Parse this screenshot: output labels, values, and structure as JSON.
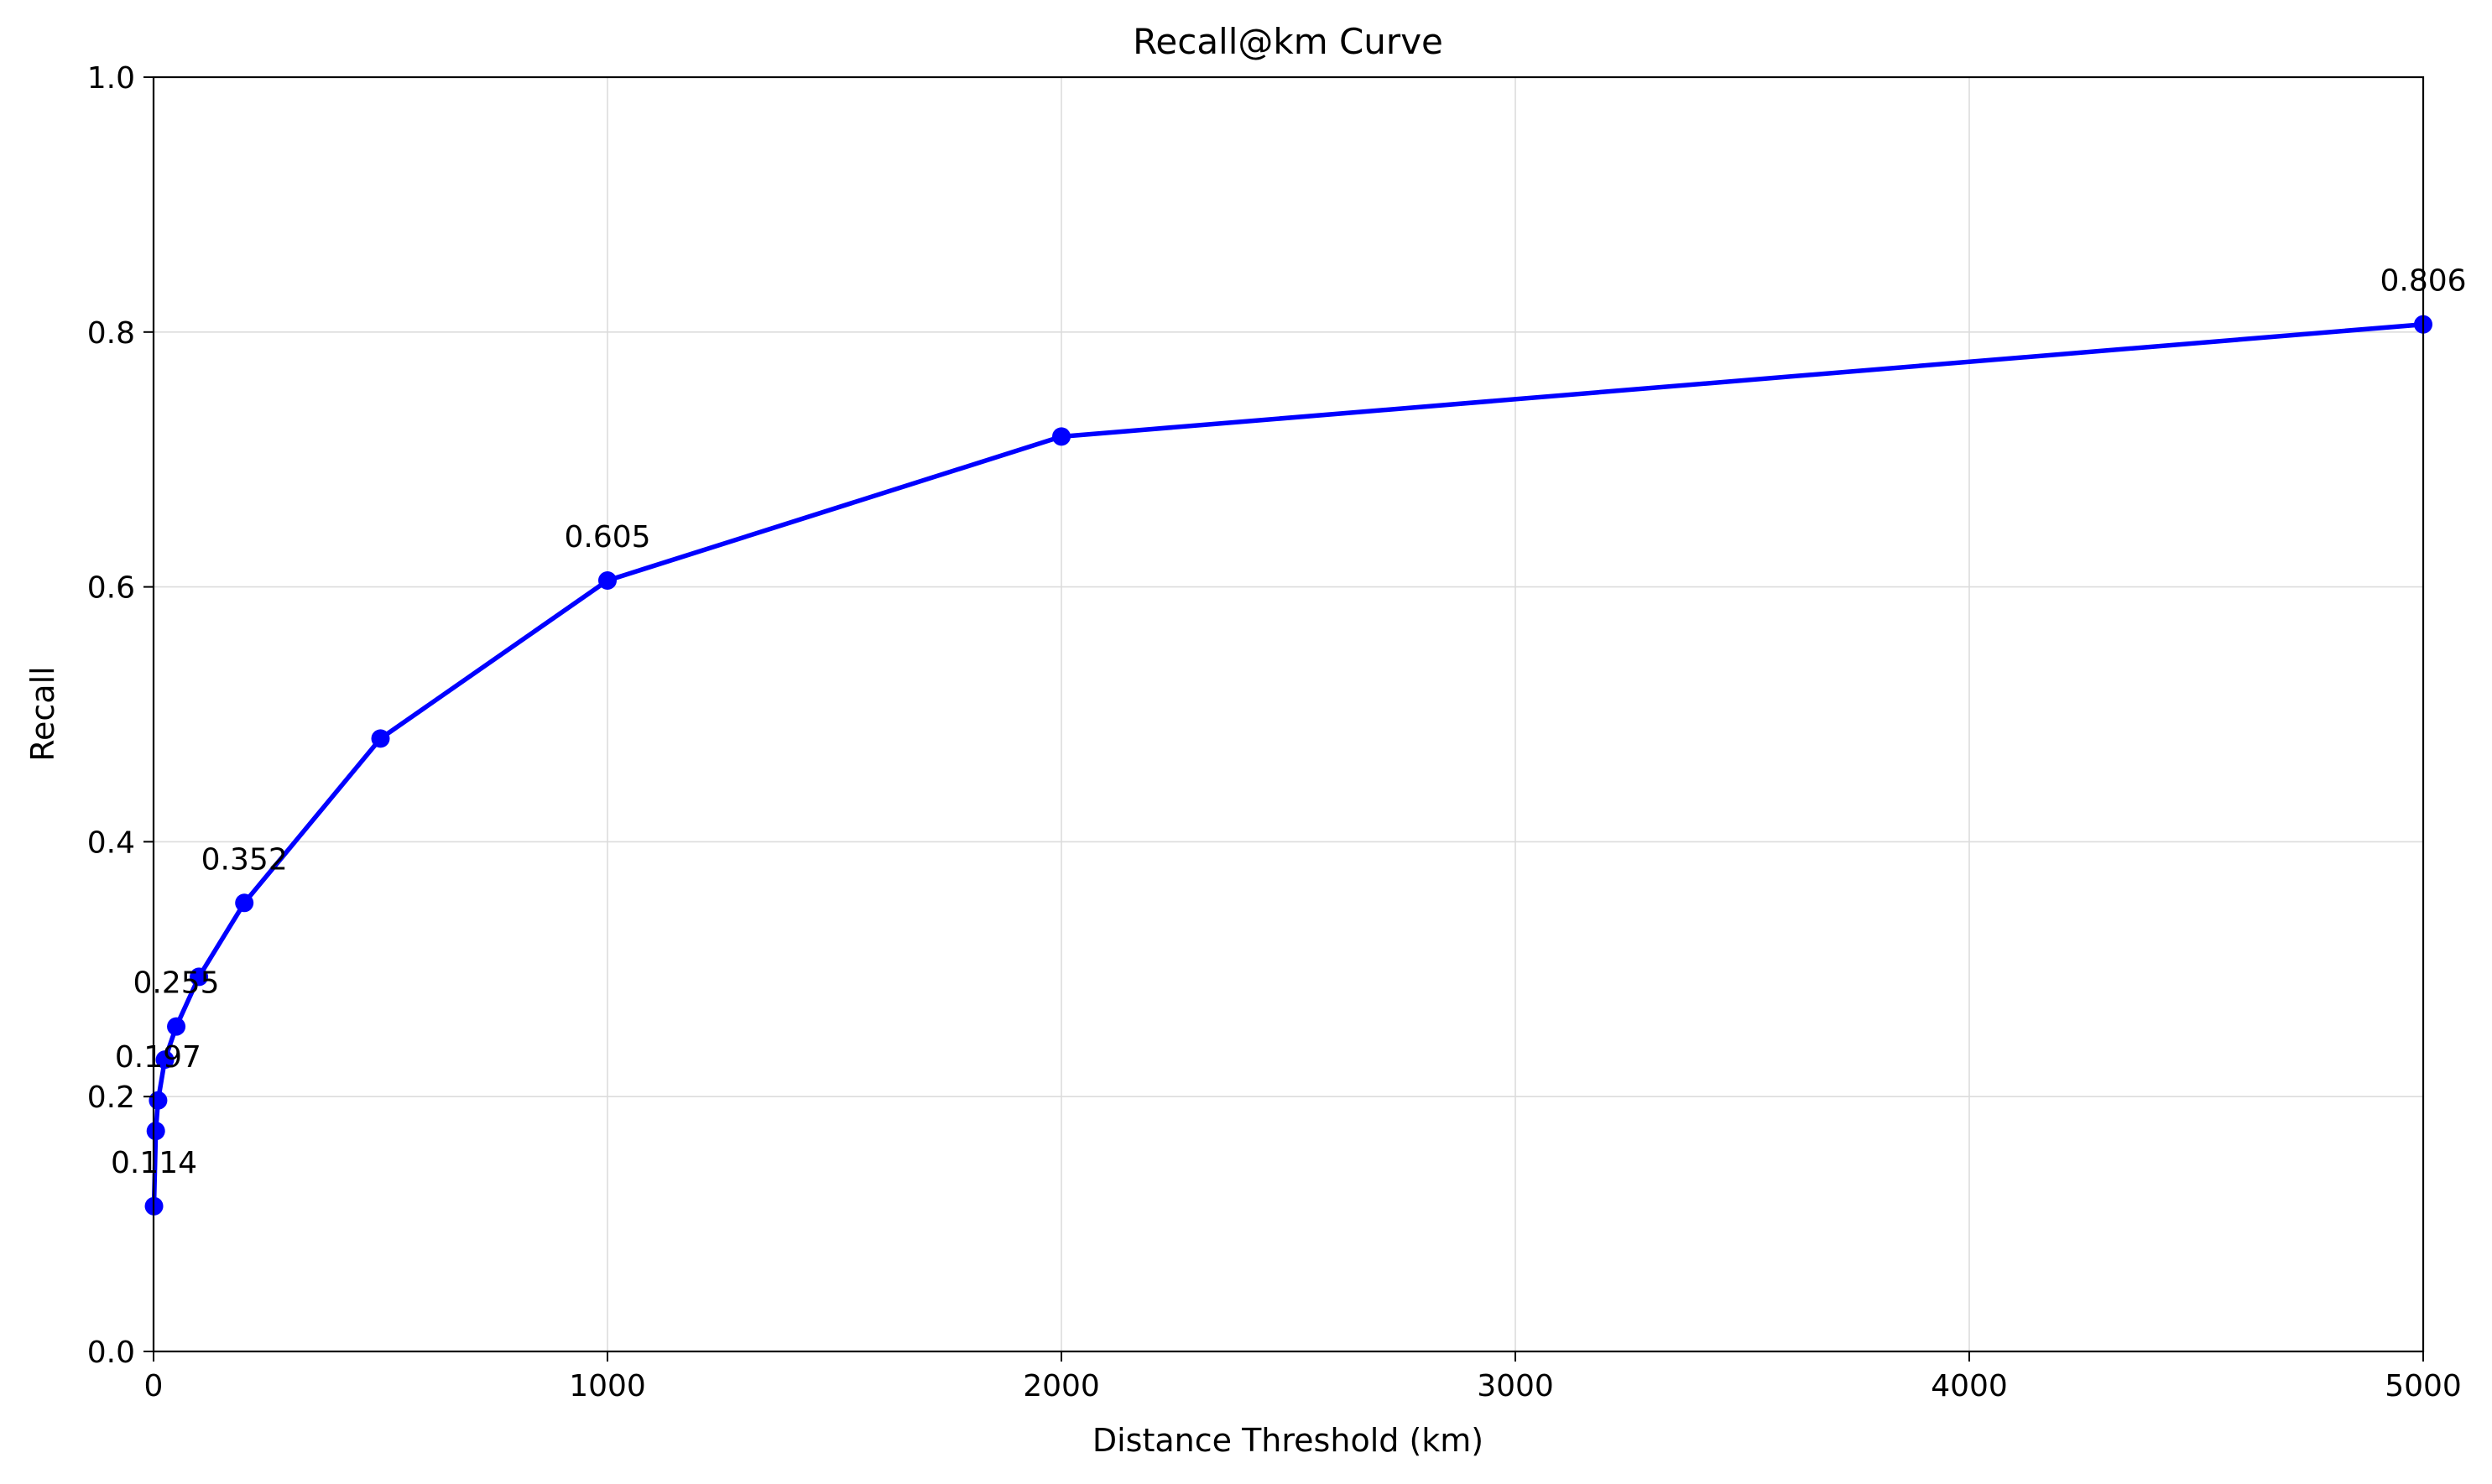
{
  "chart_data": {
    "type": "line",
    "title": "Recall@km Curve",
    "xlabel": "Distance Threshold (km)",
    "ylabel": "Recall",
    "xlim": [
      0,
      5000
    ],
    "ylim": [
      0.0,
      1.0
    ],
    "xticks": [
      0,
      1000,
      2000,
      3000,
      4000,
      5000
    ],
    "xtick_labels": [
      "0",
      "1000",
      "2000",
      "3000",
      "4000",
      "5000"
    ],
    "yticks": [
      0.0,
      0.2,
      0.4,
      0.6,
      0.8,
      1.0
    ],
    "ytick_labels": [
      "0.0",
      "0.2",
      "0.4",
      "0.6",
      "0.8",
      "1.0"
    ],
    "grid": true,
    "legend": "none",
    "series": [
      {
        "color": "#0000ff",
        "marker": "circle",
        "x": [
          1,
          5,
          10,
          25,
          50,
          100,
          200,
          500,
          1000,
          2000,
          5000
        ],
        "y": [
          0.114,
          0.173,
          0.197,
          0.229,
          0.255,
          0.294,
          0.352,
          0.481,
          0.605,
          0.718,
          0.806
        ]
      }
    ],
    "annotations": [
      {
        "x": 1,
        "y": 0.114,
        "text": "0.114"
      },
      {
        "x": 10,
        "y": 0.197,
        "text": "0.197"
      },
      {
        "x": 50,
        "y": 0.255,
        "text": "0.255"
      },
      {
        "x": 200,
        "y": 0.352,
        "text": "0.352"
      },
      {
        "x": 1000,
        "y": 0.605,
        "text": "0.605"
      },
      {
        "x": 5000,
        "y": 0.806,
        "text": "0.806"
      }
    ]
  }
}
